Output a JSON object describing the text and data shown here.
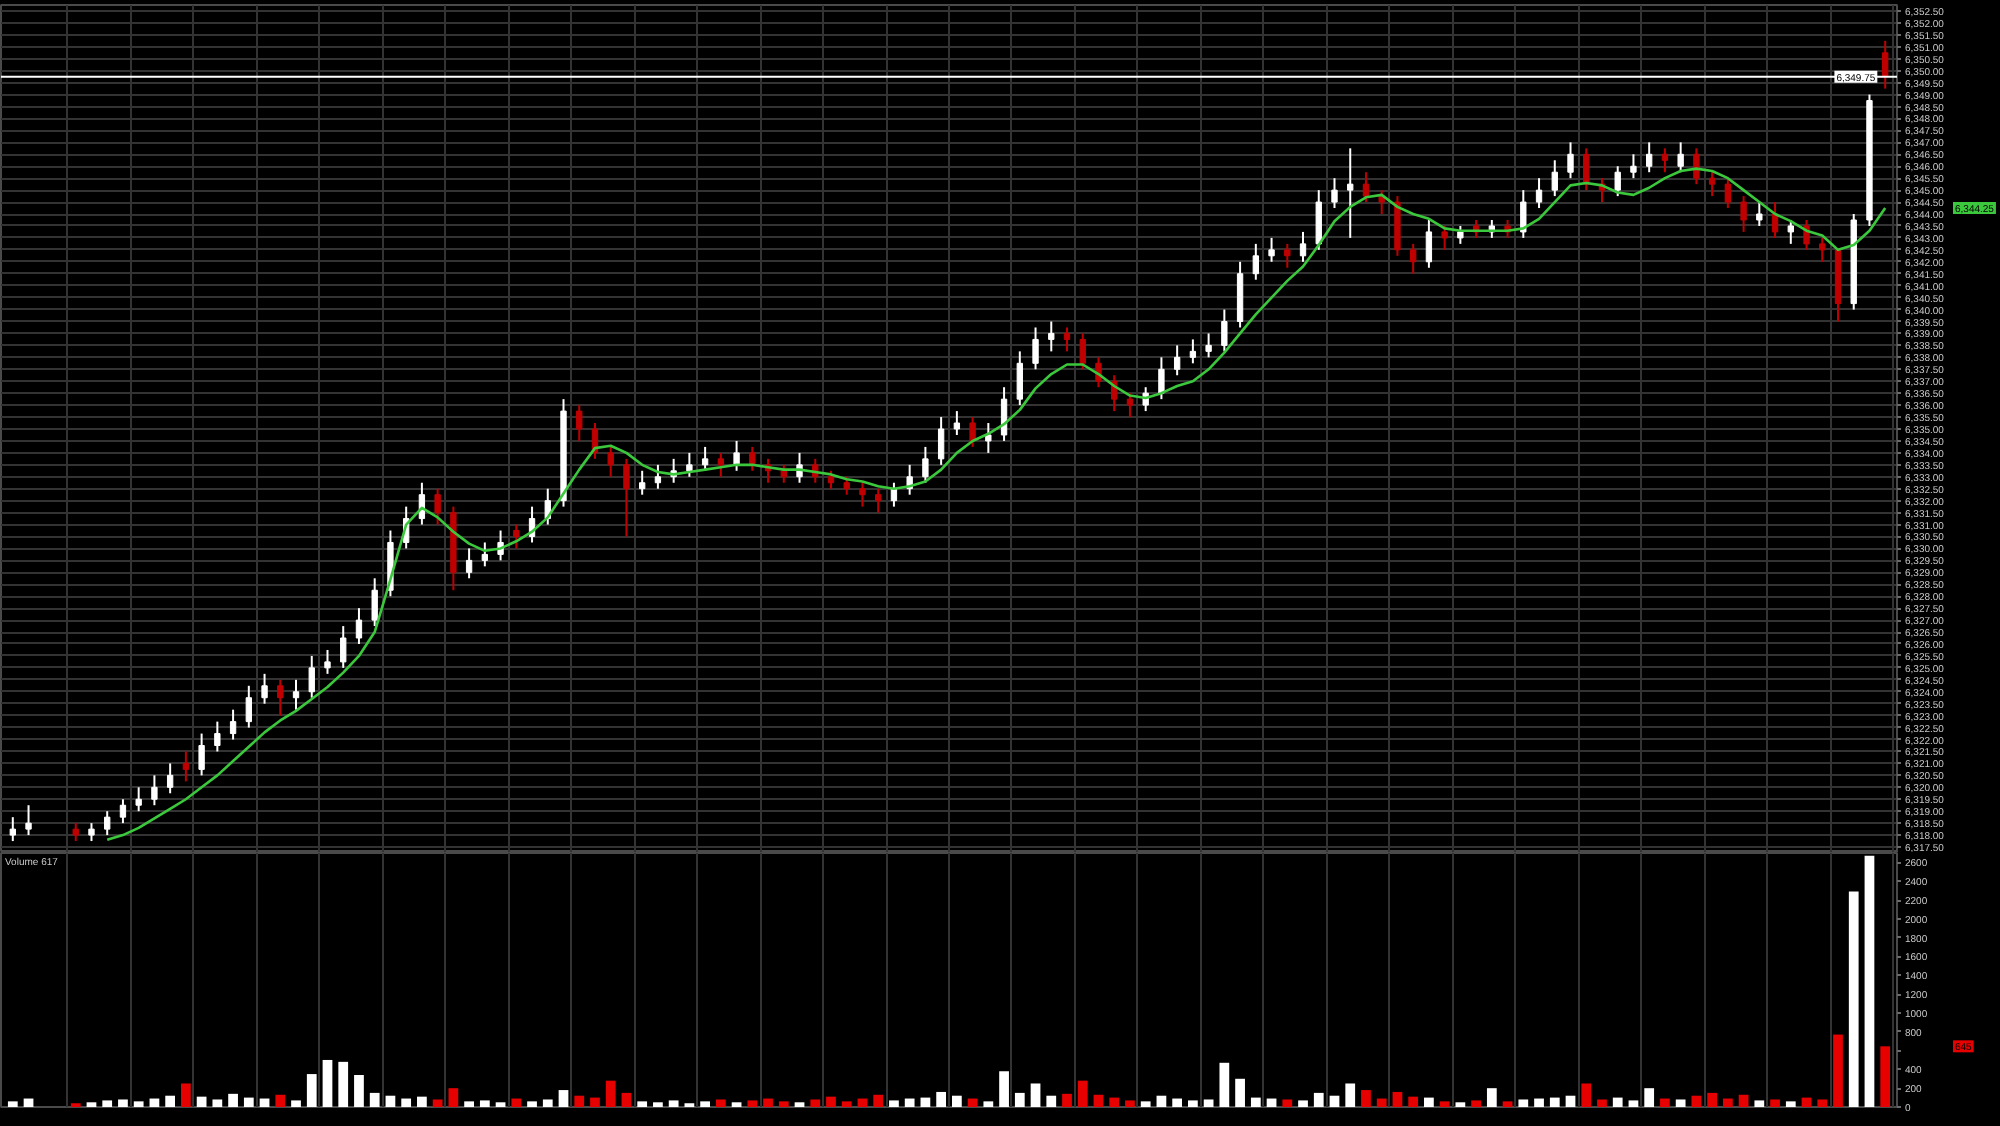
{
  "chart_data": [
    {
      "type": "candlestick",
      "categories": [
        null,
        null,
        null,
        null,
        null,
        null,
        null,
        null,
        null,
        null,
        null,
        null,
        null,
        null,
        null,
        null,
        null,
        null,
        null,
        null,
        null,
        null,
        null,
        null,
        null,
        null,
        null,
        null,
        null,
        null,
        null,
        null,
        null,
        null,
        null,
        null,
        null,
        null,
        null,
        null,
        null,
        null,
        null,
        null,
        null,
        null,
        null,
        null,
        null,
        null,
        null,
        null,
        null,
        null,
        null,
        null,
        null,
        null,
        null,
        null,
        null,
        null,
        null,
        null,
        null,
        null,
        null,
        null,
        null,
        null,
        null,
        null,
        null,
        null,
        null,
        null,
        null,
        null,
        null,
        null,
        null,
        null,
        null,
        null,
        null,
        null,
        null,
        null,
        null,
        null,
        null,
        null,
        null,
        null,
        null,
        null,
        null,
        null,
        null,
        null,
        null,
        null,
        null,
        null,
        null,
        null,
        null,
        null,
        null,
        null,
        null,
        null,
        null,
        null,
        null,
        null,
        null,
        null,
        null,
        null
      ],
      "ohlc": [
        [
          6318.0,
          6318.75,
          6317.75,
          6318.25
        ],
        [
          6318.25,
          6319.25,
          6318.0,
          6318.5
        ],
        null,
        null,
        [
          6318.25,
          6318.5,
          6317.75,
          6318.0
        ],
        [
          6318.0,
          6318.5,
          6317.75,
          6318.25
        ],
        [
          6318.25,
          6319.0,
          6318.0,
          6318.75
        ],
        [
          6318.75,
          6319.5,
          6318.5,
          6319.25
        ],
        [
          6319.25,
          6320.0,
          6319.0,
          6319.5
        ],
        [
          6319.5,
          6320.5,
          6319.25,
          6320.0
        ],
        [
          6320.0,
          6321.0,
          6319.75,
          6320.5
        ],
        [
          6321.0,
          6321.5,
          6320.25,
          6320.75
        ],
        [
          6320.75,
          6322.25,
          6320.5,
          6321.75
        ],
        [
          6321.75,
          6322.75,
          6321.5,
          6322.25
        ],
        [
          6322.25,
          6323.25,
          6322.0,
          6322.75
        ],
        [
          6322.75,
          6324.25,
          6322.5,
          6323.75
        ],
        [
          6323.75,
          6324.75,
          6323.5,
          6324.25
        ],
        [
          6324.25,
          6324.5,
          6323.0,
          6323.75
        ],
        [
          6323.75,
          6324.5,
          6323.25,
          6324.0
        ],
        [
          6324.0,
          6325.5,
          6323.75,
          6325.0
        ],
        [
          6325.0,
          6325.75,
          6324.75,
          6325.25
        ],
        [
          6325.25,
          6326.75,
          6325.0,
          6326.25
        ],
        [
          6326.25,
          6327.5,
          6326.0,
          6327.0
        ],
        [
          6327.0,
          6328.75,
          6326.75,
          6328.25
        ],
        [
          6328.25,
          6330.75,
          6328.0,
          6330.25
        ],
        [
          6330.25,
          6331.75,
          6330.0,
          6331.25
        ],
        [
          6331.25,
          6332.75,
          6331.0,
          6332.25
        ],
        [
          6332.25,
          6332.5,
          6331.0,
          6331.5
        ],
        [
          6331.5,
          6331.75,
          6328.25,
          6329.0
        ],
        [
          6329.0,
          6330.0,
          6328.75,
          6329.5
        ],
        [
          6329.5,
          6330.25,
          6329.25,
          6329.75
        ],
        [
          6329.75,
          6330.75,
          6329.5,
          6330.25
        ],
        [
          6330.75,
          6331.0,
          6330.0,
          6330.5
        ],
        [
          6330.5,
          6331.75,
          6330.25,
          6331.25
        ],
        [
          6331.25,
          6332.5,
          6331.0,
          6332.0
        ],
        [
          6332.0,
          6336.25,
          6331.75,
          6335.75
        ],
        [
          6335.75,
          6336.0,
          6334.5,
          6335.0
        ],
        [
          6335.0,
          6335.25,
          6333.75,
          6334.0
        ],
        [
          6334.0,
          6334.25,
          6333.0,
          6333.5
        ],
        [
          6333.5,
          6333.75,
          6330.5,
          6332.5
        ],
        [
          6332.5,
          6333.25,
          6332.25,
          6332.75
        ],
        [
          6332.75,
          6333.5,
          6332.5,
          6333.0
        ],
        [
          6333.0,
          6333.75,
          6332.75,
          6333.25
        ],
        [
          6333.25,
          6334.0,
          6333.0,
          6333.5
        ],
        [
          6333.5,
          6334.25,
          6333.25,
          6333.75
        ],
        [
          6333.75,
          6334.0,
          6333.0,
          6333.5
        ],
        [
          6333.5,
          6334.5,
          6333.25,
          6334.0
        ],
        [
          6334.0,
          6334.25,
          6333.25,
          6333.5
        ],
        [
          6333.5,
          6333.75,
          6332.75,
          6333.25
        ],
        [
          6333.25,
          6333.5,
          6332.75,
          6333.0
        ],
        [
          6333.0,
          6334.0,
          6332.75,
          6333.5
        ],
        [
          6333.5,
          6333.75,
          6332.75,
          6333.0
        ],
        [
          6333.0,
          6333.25,
          6332.5,
          6332.75
        ],
        [
          6332.75,
          6333.0,
          6332.25,
          6332.5
        ],
        [
          6332.5,
          6332.75,
          6331.75,
          6332.25
        ],
        [
          6332.25,
          6332.5,
          6331.5,
          6332.0
        ],
        [
          6332.0,
          6332.75,
          6331.75,
          6332.5
        ],
        [
          6332.5,
          6333.5,
          6332.25,
          6333.0
        ],
        [
          6333.0,
          6334.25,
          6332.75,
          6333.75
        ],
        [
          6333.75,
          6335.5,
          6333.5,
          6335.0
        ],
        [
          6335.0,
          6335.75,
          6334.75,
          6335.25
        ],
        [
          6335.25,
          6335.5,
          6334.25,
          6334.5
        ],
        [
          6334.5,
          6335.25,
          6334.0,
          6334.75
        ],
        [
          6334.75,
          6336.75,
          6334.5,
          6336.25
        ],
        [
          6336.25,
          6338.25,
          6336.0,
          6337.75
        ],
        [
          6337.75,
          6339.25,
          6337.5,
          6338.75
        ],
        [
          6338.75,
          6339.5,
          6338.25,
          6339.0
        ],
        [
          6339.0,
          6339.25,
          6338.25,
          6338.75
        ],
        [
          6338.75,
          6339.0,
          6337.5,
          6337.75
        ],
        [
          6337.75,
          6338.0,
          6336.75,
          6337.0
        ],
        [
          6337.0,
          6337.25,
          6335.75,
          6336.25
        ],
        [
          6336.25,
          6336.5,
          6335.5,
          6336.0
        ],
        [
          6336.0,
          6336.75,
          6335.75,
          6336.5
        ],
        [
          6336.5,
          6338.0,
          6336.25,
          6337.5
        ],
        [
          6337.5,
          6338.5,
          6337.25,
          6338.0
        ],
        [
          6338.0,
          6338.75,
          6337.75,
          6338.25
        ],
        [
          6338.25,
          6339.0,
          6338.0,
          6338.5
        ],
        [
          6338.5,
          6340.0,
          6338.25,
          6339.5
        ],
        [
          6339.5,
          6342.0,
          6339.25,
          6341.5
        ],
        [
          6341.5,
          6342.75,
          6341.25,
          6342.25
        ],
        [
          6342.25,
          6343.0,
          6342.0,
          6342.5
        ],
        [
          6342.5,
          6342.75,
          6341.75,
          6342.25
        ],
        [
          6342.25,
          6343.25,
          6342.0,
          6342.75
        ],
        [
          6342.75,
          6345.0,
          6342.5,
          6344.5
        ],
        [
          6344.5,
          6345.5,
          6344.25,
          6345.0
        ],
        [
          6345.0,
          6346.75,
          6343.0,
          6345.25
        ],
        [
          6345.25,
          6345.75,
          6344.5,
          6344.75
        ],
        [
          6344.75,
          6345.0,
          6344.0,
          6344.5
        ],
        [
          6344.5,
          6344.75,
          6342.25,
          6342.5
        ],
        [
          6342.5,
          6342.75,
          6341.5,
          6342.0
        ],
        [
          6342.0,
          6343.75,
          6341.75,
          6343.25
        ],
        [
          6343.25,
          6343.5,
          6342.5,
          6343.0
        ],
        [
          6343.0,
          6343.5,
          6342.75,
          6343.25
        ],
        [
          6343.5,
          6343.75,
          6343.0,
          6343.25
        ],
        [
          6343.25,
          6343.75,
          6343.0,
          6343.5
        ],
        [
          6343.5,
          6343.75,
          6343.0,
          6343.25
        ],
        [
          6343.25,
          6345.0,
          6343.0,
          6344.5
        ],
        [
          6344.5,
          6345.5,
          6344.25,
          6345.0
        ],
        [
          6345.0,
          6346.25,
          6344.75,
          6345.75
        ],
        [
          6345.75,
          6347.0,
          6345.5,
          6346.5
        ],
        [
          6346.5,
          6346.75,
          6345.0,
          6345.25
        ],
        [
          6345.25,
          6345.5,
          6344.5,
          6345.0
        ],
        [
          6345.0,
          6346.0,
          6344.75,
          6345.75
        ],
        [
          6345.75,
          6346.5,
          6345.5,
          6346.0
        ],
        [
          6346.0,
          6347.0,
          6345.75,
          6346.5
        ],
        [
          6346.5,
          6346.75,
          6345.75,
          6346.25
        ],
        [
          6346.0,
          6347.0,
          6345.75,
          6346.5
        ],
        [
          6346.5,
          6346.75,
          6345.25,
          6345.5
        ],
        [
          6345.5,
          6345.75,
          6344.75,
          6345.25
        ],
        [
          6345.25,
          6345.5,
          6344.25,
          6344.5
        ],
        [
          6344.5,
          6344.75,
          6343.25,
          6343.75
        ],
        [
          6343.75,
          6344.5,
          6343.5,
          6344.0
        ],
        [
          6344.0,
          6344.5,
          6343.0,
          6343.25
        ],
        [
          6343.25,
          6343.75,
          6342.75,
          6343.5
        ],
        [
          6343.5,
          6343.75,
          6342.5,
          6342.75
        ],
        [
          6342.75,
          6343.0,
          6342.0,
          6342.5
        ],
        [
          6342.5,
          6342.5,
          6339.5,
          6340.25
        ],
        [
          6340.25,
          6344.0,
          6340.0,
          6343.75
        ],
        [
          6343.75,
          6349.0,
          6343.5,
          6348.75
        ],
        [
          6350.75,
          6351.25,
          6349.25,
          6349.75
        ]
      ],
      "colors": [
        "#ffffff",
        "#ffffff",
        null,
        null,
        "#c00000",
        "#ffffff",
        "#ffffff",
        "#ffffff",
        "#ffffff",
        "#ffffff",
        "#ffffff",
        "#c00000",
        "#ffffff",
        "#ffffff",
        "#ffffff",
        "#ffffff",
        "#ffffff",
        "#c00000",
        "#ffffff",
        "#ffffff",
        "#ffffff",
        "#ffffff",
        "#ffffff",
        "#ffffff",
        "#ffffff",
        "#ffffff",
        "#ffffff",
        "#c00000",
        "#c00000",
        "#ffffff",
        "#ffffff",
        "#ffffff",
        "#c00000",
        "#ffffff",
        "#ffffff",
        "#ffffff",
        "#c00000",
        "#c00000",
        "#c00000",
        "#c00000",
        "#ffffff",
        "#ffffff",
        "#ffffff",
        "#ffffff",
        "#ffffff",
        "#c00000",
        "#ffffff",
        "#c00000",
        "#c00000",
        "#c00000",
        "#ffffff",
        "#c00000",
        "#c00000",
        "#c00000",
        "#c00000",
        "#c00000",
        "#ffffff",
        "#ffffff",
        "#ffffff",
        "#ffffff",
        "#ffffff",
        "#c00000",
        "#ffffff",
        "#ffffff",
        "#ffffff",
        "#ffffff",
        "#ffffff",
        "#c00000",
        "#c00000",
        "#c00000",
        "#c00000",
        "#c00000",
        "#ffffff",
        "#ffffff",
        "#ffffff",
        "#ffffff",
        "#ffffff",
        "#ffffff",
        "#ffffff",
        "#ffffff",
        "#ffffff",
        "#c00000",
        "#ffffff",
        "#ffffff",
        "#ffffff",
        "#ffffff",
        "#c00000",
        "#c00000",
        "#c00000",
        "#c00000",
        "#ffffff",
        "#c00000",
        "#ffffff",
        "#c00000",
        "#ffffff",
        "#c00000",
        "#ffffff",
        "#ffffff",
        "#ffffff",
        "#ffffff",
        "#c00000",
        "#c00000",
        "#ffffff",
        "#ffffff",
        "#ffffff",
        "#c00000",
        "#ffffff",
        "#c00000",
        "#c00000",
        "#c00000",
        "#c00000",
        "#ffffff",
        "#c00000",
        "#ffffff",
        "#c00000",
        "#c00000",
        "#c00000",
        "#ffffff",
        "#ffffff",
        "#c00000"
      ],
      "series": [
        {
          "type": "line",
          "color": "#3cc83c",
          "values": [
            null,
            null,
            null,
            null,
            null,
            null,
            6317.8,
            6318.0,
            6318.3,
            6318.7,
            6319.1,
            6319.5,
            6320.0,
            6320.5,
            6321.1,
            6321.7,
            6322.3,
            6322.8,
            6323.2,
            6323.7,
            6324.2,
            6324.8,
            6325.5,
            6326.5,
            6328.7,
            6331.0,
            6331.7,
            6331.3,
            6330.7,
            6330.2,
            6329.9,
            6330.0,
            6330.3,
            6330.7,
            6331.3,
            6332.3,
            6333.3,
            6334.2,
            6334.3,
            6334.0,
            6333.5,
            6333.2,
            6333.1,
            6333.2,
            6333.3,
            6333.4,
            6333.5,
            6333.5,
            6333.4,
            6333.3,
            6333.3,
            6333.2,
            6333.1,
            6332.9,
            6332.8,
            6332.6,
            6332.5,
            6332.6,
            6332.8,
            6333.3,
            6334.0,
            6334.5,
            6334.8,
            6335.2,
            6335.8,
            6336.7,
            6337.3,
            6337.7,
            6337.7,
            6337.3,
            6336.8,
            6336.4,
            6336.3,
            6336.5,
            6336.8,
            6337.0,
            6337.5,
            6338.2,
            6339.0,
            6339.8,
            6340.5,
            6341.2,
            6341.8,
            6342.7,
            6343.7,
            6344.3,
            6344.7,
            6344.8,
            6344.3,
            6344.0,
            6343.8,
            6343.4,
            6343.3,
            6343.3,
            6343.3,
            6343.3,
            6343.4,
            6343.8,
            6344.5,
            6345.2,
            6345.3,
            6345.2,
            6344.9,
            6344.8,
            6345.1,
            6345.5,
            6345.8,
            6345.9,
            6345.8,
            6345.5,
            6345.0,
            6344.5,
            6344.0,
            6343.7,
            6343.3,
            6343.1,
            6342.5,
            6342.7,
            6343.3,
            6344.25
          ]
        }
      ],
      "ylim": [
        6317.25,
        6352.75
      ],
      "yticks": [
        {
          "value": 6317.5,
          "label": "6,317.50"
        },
        {
          "value": 6318,
          "label": "6,318.00"
        },
        {
          "value": 6318.5,
          "label": "6,318.50"
        },
        {
          "value": 6319,
          "label": "6,319.00"
        },
        {
          "value": 6319.5,
          "label": "6,319.50"
        },
        {
          "value": 6320,
          "label": "6,320.00"
        },
        {
          "value": 6320.5,
          "label": "6,320.50"
        },
        {
          "value": 6321,
          "label": "6,321.00"
        },
        {
          "value": 6321.5,
          "label": "6,321.50"
        },
        {
          "value": 6322,
          "label": "6,322.00"
        },
        {
          "value": 6322.5,
          "label": "6,322.50"
        },
        {
          "value": 6323,
          "label": "6,323.00"
        },
        {
          "value": 6323.5,
          "label": "6,323.50"
        },
        {
          "value": 6324,
          "label": "6,324.00"
        },
        {
          "value": 6324.5,
          "label": "6,324.50"
        },
        {
          "value": 6325,
          "label": "6,325.00"
        },
        {
          "value": 6325.5,
          "label": "6,325.50"
        },
        {
          "value": 6326,
          "label": "6,326.00"
        },
        {
          "value": 6326.5,
          "label": "6,326.50"
        },
        {
          "value": 6327,
          "label": "6,327.00"
        },
        {
          "value": 6327.5,
          "label": "6,327.50"
        },
        {
          "value": 6328,
          "label": "6,328.00"
        },
        {
          "value": 6328.5,
          "label": "6,328.50"
        },
        {
          "value": 6329,
          "label": "6,329.00"
        },
        {
          "value": 6329.5,
          "label": "6,329.50"
        },
        {
          "value": 6330,
          "label": "6,330.00"
        },
        {
          "value": 6330.5,
          "label": "6,330.50"
        },
        {
          "value": 6331,
          "label": "6,331.00"
        },
        {
          "value": 6331.5,
          "label": "6,331.50"
        },
        {
          "value": 6332,
          "label": "6,332.00"
        },
        {
          "value": 6332.5,
          "label": "6,332.50"
        },
        {
          "value": 6333,
          "label": "6,333.00"
        },
        {
          "value": 6333.5,
          "label": "6,333.50"
        },
        {
          "value": 6334,
          "label": "6,334.00"
        },
        {
          "value": 6334.5,
          "label": "6,334.50"
        },
        {
          "value": 6335,
          "label": "6,335.00"
        },
        {
          "value": 6335.5,
          "label": "6,335.50"
        },
        {
          "value": 6336,
          "label": "6,336.00"
        },
        {
          "value": 6336.5,
          "label": "6,336.50"
        },
        {
          "value": 6337,
          "label": "6,337.00"
        },
        {
          "value": 6337.5,
          "label": "6,337.50"
        },
        {
          "value": 6338,
          "label": "6,338.00"
        },
        {
          "value": 6338.5,
          "label": "6,338.50"
        },
        {
          "value": 6339,
          "label": "6,339.00"
        },
        {
          "value": 6339.5,
          "label": "6,339.50"
        },
        {
          "value": 6340,
          "label": "6,340.00"
        },
        {
          "value": 6340.5,
          "label": "6,340.50"
        },
        {
          "value": 6341,
          "label": "6,341.00"
        },
        {
          "value": 6341.5,
          "label": "6,341.50"
        },
        {
          "value": 6342,
          "label": "6,342.00"
        },
        {
          "value": 6342.5,
          "label": "6,342.50"
        },
        {
          "value": 6343,
          "label": "6,343.00"
        },
        {
          "value": 6343.5,
          "label": "6,343.50"
        },
        {
          "value": 6344,
          "label": "6,344.00"
        },
        {
          "value": 6344.5,
          "label": "6,344.50"
        },
        {
          "value": 6345,
          "label": "6,345.00"
        },
        {
          "value": 6345.5,
          "label": "6,345.50"
        },
        {
          "value": 6346,
          "label": "6,346.00"
        },
        {
          "value": 6346.5,
          "label": "6,346.50"
        },
        {
          "value": 6347,
          "label": "6,347.00"
        },
        {
          "value": 6347.5,
          "label": "6,347.50"
        },
        {
          "value": 6348,
          "label": "6,348.00"
        },
        {
          "value": 6348.5,
          "label": "6,348.50"
        },
        {
          "value": 6349,
          "label": "6,349.00"
        },
        {
          "value": 6349.5,
          "label": "6,349.50"
        },
        {
          "value": 6350,
          "label": "6,350.00"
        },
        {
          "value": 6350.5,
          "label": "6,350.50"
        },
        {
          "value": 6351,
          "label": "6,351.00"
        },
        {
          "value": 6351.5,
          "label": "6,351.50"
        },
        {
          "value": 6352,
          "label": "6,352.00"
        },
        {
          "value": 6352.5,
          "label": "6,352.50"
        }
      ],
      "grid": true,
      "tick_labels": "y",
      "ref_lines": [
        {
          "axis": "y",
          "value": 6349.75,
          "label": "6,349.75",
          "color": "#ffffff"
        }
      ],
      "annotations": [
        "6,344.25"
      ]
    },
    {
      "type": "bar",
      "title": "Volume 617",
      "categories": [
        null,
        null,
        null,
        null,
        null,
        null,
        null,
        null,
        null,
        null,
        null,
        null,
        null,
        null,
        null,
        null,
        null,
        null,
        null,
        null,
        null,
        null,
        null,
        null,
        null,
        null,
        null,
        null,
        null,
        null,
        null,
        null,
        null,
        null,
        null,
        null,
        null,
        null,
        null,
        null,
        null,
        null,
        null,
        null,
        null,
        null,
        null,
        null,
        null,
        null,
        null,
        null,
        null,
        null,
        null,
        null,
        null,
        null,
        null,
        null,
        null,
        null,
        null,
        null,
        null,
        null,
        null,
        null,
        null,
        null,
        null,
        null,
        null,
        null,
        null,
        null,
        null,
        null,
        null,
        null,
        null,
        null,
        null,
        null,
        null,
        null,
        null,
        null,
        null,
        null,
        null,
        null,
        null,
        null,
        null,
        null,
        null,
        null,
        null,
        null,
        null,
        null,
        null,
        null,
        null,
        null,
        null,
        null,
        null,
        null,
        null,
        null,
        null,
        null,
        null,
        null,
        null,
        null,
        null,
        null
      ],
      "values": [
        60,
        90,
        null,
        null,
        40,
        50,
        70,
        80,
        60,
        90,
        120,
        250,
        110,
        80,
        140,
        100,
        90,
        130,
        70,
        350,
        500,
        480,
        340,
        150,
        120,
        90,
        110,
        80,
        200,
        60,
        70,
        50,
        90,
        60,
        80,
        180,
        120,
        100,
        280,
        150,
        60,
        50,
        70,
        40,
        60,
        80,
        50,
        70,
        90,
        60,
        50,
        80,
        110,
        60,
        90,
        130,
        70,
        90,
        100,
        160,
        120,
        90,
        60,
        380,
        150,
        250,
        120,
        140,
        280,
        130,
        100,
        70,
        60,
        120,
        90,
        70,
        80,
        470,
        300,
        100,
        90,
        80,
        70,
        150,
        120,
        250,
        180,
        90,
        160,
        110,
        100,
        60,
        50,
        70,
        200,
        60,
        80,
        90,
        100,
        120,
        250,
        80,
        100,
        70,
        200,
        90,
        80,
        120,
        150,
        90,
        130,
        70,
        80,
        60,
        100,
        80,
        770,
        2290,
        2670,
        645
      ],
      "colors": [
        "#ffffff",
        "#ffffff",
        null,
        null,
        "#e60000",
        "#ffffff",
        "#ffffff",
        "#ffffff",
        "#ffffff",
        "#ffffff",
        "#ffffff",
        "#e60000",
        "#ffffff",
        "#ffffff",
        "#ffffff",
        "#ffffff",
        "#ffffff",
        "#e60000",
        "#ffffff",
        "#ffffff",
        "#ffffff",
        "#ffffff",
        "#ffffff",
        "#ffffff",
        "#ffffff",
        "#ffffff",
        "#ffffff",
        "#e60000",
        "#e60000",
        "#ffffff",
        "#ffffff",
        "#ffffff",
        "#e60000",
        "#ffffff",
        "#ffffff",
        "#ffffff",
        "#e60000",
        "#e60000",
        "#e60000",
        "#e60000",
        "#ffffff",
        "#ffffff",
        "#ffffff",
        "#ffffff",
        "#ffffff",
        "#e60000",
        "#ffffff",
        "#e60000",
        "#e60000",
        "#e60000",
        "#ffffff",
        "#e60000",
        "#e60000",
        "#e60000",
        "#e60000",
        "#e60000",
        "#ffffff",
        "#ffffff",
        "#ffffff",
        "#ffffff",
        "#ffffff",
        "#e60000",
        "#ffffff",
        "#ffffff",
        "#ffffff",
        "#ffffff",
        "#ffffff",
        "#e60000",
        "#e60000",
        "#e60000",
        "#e60000",
        "#e60000",
        "#ffffff",
        "#ffffff",
        "#ffffff",
        "#ffffff",
        "#ffffff",
        "#ffffff",
        "#ffffff",
        "#ffffff",
        "#ffffff",
        "#e60000",
        "#ffffff",
        "#ffffff",
        "#ffffff",
        "#ffffff",
        "#e60000",
        "#e60000",
        "#e60000",
        "#e60000",
        "#ffffff",
        "#e60000",
        "#ffffff",
        "#e60000",
        "#ffffff",
        "#e60000",
        "#ffffff",
        "#ffffff",
        "#ffffff",
        "#ffffff",
        "#e60000",
        "#e60000",
        "#ffffff",
        "#ffffff",
        "#ffffff",
        "#e60000",
        "#ffffff",
        "#e60000",
        "#e60000",
        "#e60000",
        "#e60000",
        "#ffffff",
        "#e60000",
        "#ffffff",
        "#e60000",
        "#e60000",
        "#e60000",
        "#ffffff",
        "#ffffff",
        "#e60000"
      ],
      "ylim": [
        0,
        2700
      ],
      "yticks": [
        0,
        200,
        400,
        {
          "value": 600,
          "label": null
        },
        800,
        1000,
        1200,
        1400,
        1600,
        1800,
        2000,
        2200,
        2400,
        2600
      ],
      "grid": "x",
      "tick_labels": "y",
      "annotations": [
        "645"
      ]
    }
  ]
}
